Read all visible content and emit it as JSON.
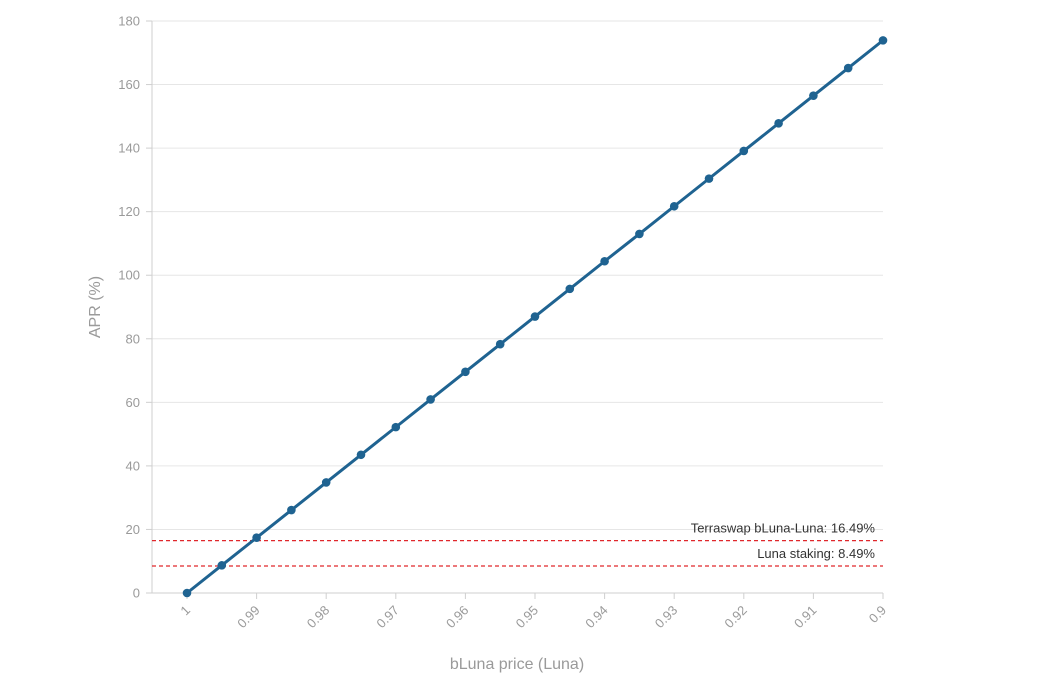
{
  "chart_data": {
    "type": "line",
    "title": "",
    "xlabel": "bLuna price (Luna)",
    "ylabel": "APR (%)",
    "x_ticks": [
      "1",
      "0.99",
      "0.98",
      "0.97",
      "0.96",
      "0.95",
      "0.94",
      "0.93",
      "0.92",
      "0.91",
      "0.9"
    ],
    "y_ticks": [
      "0",
      "20",
      "40",
      "60",
      "80",
      "100",
      "120",
      "140",
      "160",
      "180"
    ],
    "xlim": [
      1,
      0.9
    ],
    "ylim": [
      0,
      180
    ],
    "grid": true,
    "series": [
      {
        "color": "#1f6391",
        "x": [
          1,
          0.995,
          0.99,
          0.985,
          0.98,
          0.975,
          0.97,
          0.965,
          0.96,
          0.955,
          0.95,
          0.945,
          0.94,
          0.935,
          0.93,
          0.925,
          0.92,
          0.915,
          0.91,
          0.905,
          0.9
        ],
        "y": [
          0,
          8.7,
          17.4,
          26.1,
          34.8,
          43.5,
          52.2,
          60.9,
          69.6,
          78.3,
          87.0,
          95.7,
          104.4,
          113.0,
          121.7,
          130.4,
          139.1,
          147.8,
          156.5,
          165.2,
          173.9
        ]
      }
    ],
    "reference_lines": [
      {
        "label": "Terraswap bLuna-Luna: 16.49%",
        "y": 16.49,
        "color": "#e0272b"
      },
      {
        "label": "Luna staking: 8.49%",
        "y": 8.49,
        "color": "#e0272b"
      }
    ]
  }
}
